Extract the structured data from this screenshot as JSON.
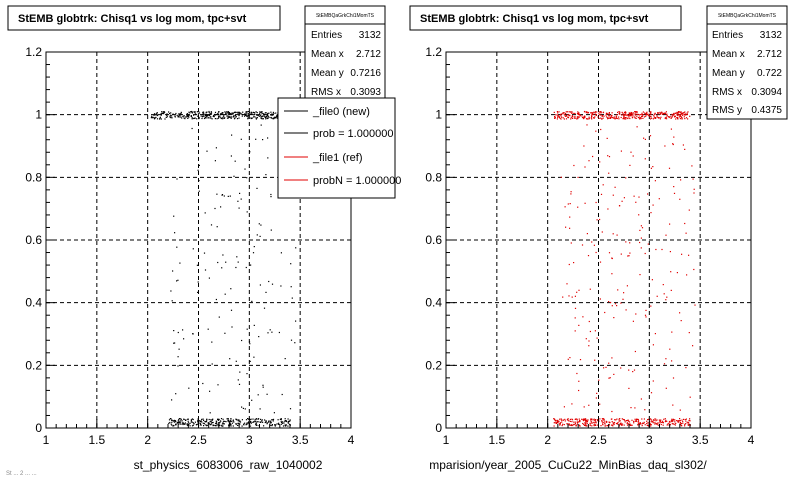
{
  "colors": {
    "file0": "#000000",
    "file1": "#e00000",
    "grid": "#000000"
  },
  "footer_text": "St ... 2 ... ...",
  "legend": {
    "entries": [
      {
        "label": "_file0 (new)",
        "color": "#000000"
      },
      {
        "label": "prob = 1.000000",
        "color": "#000000"
      },
      {
        "label": "_file1 (ref)",
        "color": "#e00000"
      },
      {
        "label": "probN = 1.000000",
        "color": "#e00000"
      }
    ]
  },
  "chart_data": [
    {
      "type": "scatter",
      "title": "StEMB globtrk: Chisq1 vs log mom, tpc+svt",
      "xlabel": "st_physics_6083006_raw_1040002",
      "ylabel": "",
      "xlim": [
        1,
        4
      ],
      "ylim": [
        0,
        1.2
      ],
      "xticks": [
        "1",
        "1.5",
        "2",
        "2.5",
        "3",
        "3.5",
        "4"
      ],
      "yticks": [
        "0",
        "0.2",
        "0.4",
        "0.6",
        "0.8",
        "1",
        "1.2"
      ],
      "grid": true,
      "series": [
        {
          "name": "_file0 (new)",
          "color": "#000000",
          "bands": [
            {
              "y": 1.0,
              "x_range": [
                2.03,
                3.45
              ],
              "spread": 0.012,
              "count": 420
            },
            {
              "y": 0.02,
              "x_range": [
                2.2,
                3.4
              ],
              "spread": 0.012,
              "count": 320
            },
            {
              "y_range": [
                0.05,
                0.97
              ],
              "x_range": [
                2.2,
                3.45
              ],
              "count": 160
            }
          ]
        }
      ],
      "stats": {
        "box_title": "StEMBQaGrkChi1MomTS",
        "rows": [
          {
            "label": "Entries",
            "value": "3132"
          },
          {
            "label": "Mean x",
            "value": "2.712"
          },
          {
            "label": "Mean y",
            "value": "0.7216"
          },
          {
            "label": "RMS x",
            "value": "0.3093"
          }
        ]
      }
    },
    {
      "type": "scatter",
      "title": "StEMB globtrk: Chisq1 vs log mom, tpc+svt",
      "xlabel": "mparision/year_2005_CuCu22_MinBias_daq_sl302/",
      "ylabel": "",
      "xlim": [
        1,
        4
      ],
      "ylim": [
        0,
        1.2
      ],
      "xticks": [
        "1",
        "1.5",
        "2",
        "2.5",
        "3",
        "3.5",
        "4"
      ],
      "yticks": [
        "0",
        "0.2",
        "0.4",
        "0.6",
        "0.8",
        "1",
        "1.2"
      ],
      "grid": true,
      "series": [
        {
          "name": "_file1 (ref)",
          "color": "#e00000",
          "bands": [
            {
              "y": 1.0,
              "x_range": [
                2.05,
                3.4
              ],
              "spread": 0.012,
              "count": 420
            },
            {
              "y": 0.02,
              "x_range": [
                2.05,
                3.4
              ],
              "spread": 0.012,
              "count": 360
            },
            {
              "y_range": [
                0.05,
                0.97
              ],
              "x_range": [
                2.1,
                3.45
              ],
              "count": 220
            }
          ]
        }
      ],
      "stats": {
        "box_title": "StEMBQaGrkChi1MomTS",
        "rows": [
          {
            "label": "Entries",
            "value": "3132"
          },
          {
            "label": "Mean x",
            "value": "2.712"
          },
          {
            "label": "Mean y",
            "value": "0.722"
          },
          {
            "label": "RMS x",
            "value": "0.3094"
          },
          {
            "label": "RMS y",
            "value": "0.4375"
          }
        ]
      }
    }
  ]
}
